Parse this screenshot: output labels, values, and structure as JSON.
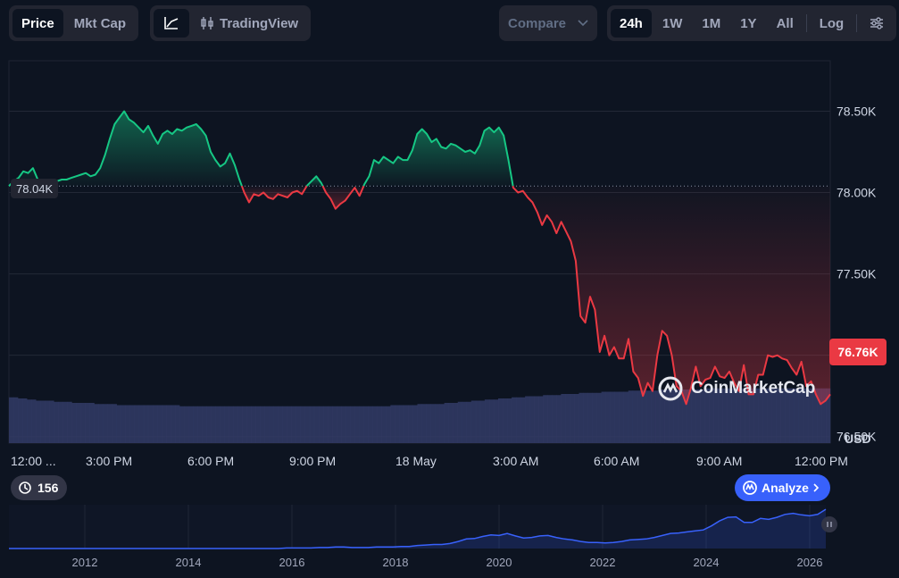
{
  "toolbar": {
    "price_tab": "Price",
    "mktcap_tab": "Mkt Cap",
    "tradingview": "TradingView",
    "compare": "Compare",
    "ranges": [
      "24h",
      "1W",
      "1M",
      "1Y",
      "All"
    ],
    "log": "Log",
    "icons": {
      "line_chart": "line-chart-icon",
      "candles": "candlestick-icon",
      "chevron": "chevron-down-icon",
      "settings": "sliders-icon"
    }
  },
  "colors": {
    "up": "#16c784",
    "down": "#ea3943",
    "accent": "#3861fb",
    "bg": "#0d1421",
    "volume": "#323b66",
    "overview": "#3861fb"
  },
  "watermark": "CoinMarketCap",
  "history_count": "156",
  "analyze_label": "Analyze",
  "currency": "USD",
  "chart_data": {
    "type": "line",
    "baseline_label": "78.04K",
    "current_label": "76.76K",
    "baseline": 78040,
    "y_axis": {
      "ticks": [
        "78.50K",
        "78.00K",
        "77.50K",
        "77.00K",
        "76.50K"
      ],
      "tick_values": [
        78500,
        78000,
        77500,
        77000,
        76500
      ]
    },
    "x_axis": {
      "ticks": [
        "12:00 ...",
        "3:00 PM",
        "6:00 PM",
        "9:00 PM",
        "18 May",
        "3:00 AM",
        "6:00 AM",
        "9:00 AM",
        "12:00 PM"
      ]
    },
    "series": [
      {
        "values": [
          78040,
          78070,
          78090,
          78130,
          78120,
          78150,
          78080,
          78060,
          78050,
          78060,
          78070,
          78080,
          78080,
          78090,
          78100,
          78110,
          78120,
          78100,
          78110,
          78150,
          78230,
          78330,
          78420,
          78460,
          78500,
          78450,
          78430,
          78400,
          78370,
          78410,
          78350,
          78300,
          78360,
          78380,
          78360,
          78390,
          78380,
          78400,
          78410,
          78420,
          78390,
          78350,
          78250,
          78200,
          78160,
          78180,
          78240,
          78170,
          78080,
          78000,
          77940,
          77990,
          77980,
          78000,
          77970,
          77960,
          77990,
          77980,
          77970,
          78000,
          78010,
          77990,
          78040,
          78070,
          78100,
          78060,
          78000,
          77960,
          77900,
          77930,
          77950,
          77990,
          78030,
          77980,
          78050,
          78100,
          78200,
          78180,
          78220,
          78200,
          78180,
          78220,
          78200,
          78200,
          78260,
          78360,
          78390,
          78360,
          78310,
          78330,
          78280,
          78270,
          78300,
          78290,
          78270,
          78250,
          78260,
          78240,
          78290,
          78380,
          78400,
          78370,
          78400,
          78350,
          78200,
          78030,
          78000,
          78010,
          77970,
          77940,
          77880,
          77800,
          77860,
          77820,
          77750,
          77820,
          77760,
          77700,
          77580,
          77240,
          77200,
          77360,
          77280,
          77020,
          77120,
          77000,
          77050,
          76980,
          76980,
          77100,
          76900,
          76860,
          76750,
          76830,
          76780,
          77000,
          77150,
          77120,
          77000,
          76810,
          76780,
          76700,
          76800,
          76930,
          76810,
          76850,
          76860,
          76930,
          76870,
          76860,
          76900,
          76830,
          76780,
          76940,
          76760,
          76760,
          76880,
          76880,
          77000,
          76990,
          77000,
          76980,
          76970,
          76920,
          76880,
          76960,
          76810,
          76840,
          76760,
          76700,
          76720,
          76760
        ]
      }
    ],
    "volume": {
      "values": [
        41,
        41,
        40,
        40,
        39,
        39,
        38,
        38,
        38,
        38,
        37,
        37,
        37,
        37,
        36,
        36,
        36,
        36,
        36,
        35,
        35,
        35,
        35,
        35,
        34,
        34,
        34,
        34,
        34,
        34,
        34,
        34,
        34,
        34,
        34,
        34,
        34,
        34,
        33,
        33,
        33,
        33,
        33,
        33,
        33,
        33,
        33,
        33,
        33,
        33,
        33,
        33,
        33,
        33,
        33,
        33,
        33,
        33,
        33,
        33,
        33,
        33,
        33,
        33,
        33,
        33,
        33,
        33,
        33,
        33,
        33,
        33,
        33,
        33,
        33,
        33,
        33,
        33,
        33,
        33,
        33,
        33,
        33,
        33,
        33,
        34,
        34,
        34,
        34,
        34,
        34,
        35,
        35,
        35,
        35,
        35,
        35,
        36,
        36,
        36,
        37,
        37,
        37,
        38,
        38,
        38,
        39,
        39,
        39,
        40,
        40,
        40,
        41,
        41,
        41,
        42,
        42,
        42,
        42,
        43,
        43,
        43,
        43,
        44,
        44,
        44,
        44,
        45,
        45,
        45,
        45,
        45,
        46,
        46,
        46,
        46,
        46,
        46,
        47,
        47,
        47,
        47,
        47,
        47,
        47,
        48,
        48,
        48,
        48,
        48,
        48,
        48,
        48,
        48,
        48,
        49,
        49,
        49,
        49,
        49,
        49,
        49,
        49,
        49,
        49,
        49,
        49,
        49,
        49,
        49,
        49,
        49,
        49,
        49,
        49,
        49,
        49,
        49,
        49,
        49,
        49,
        49,
        49
      ]
    },
    "overview": {
      "x_ticks": [
        "2012",
        "2014",
        "2016",
        "2018",
        "2020",
        "2022",
        "2024",
        "2026"
      ],
      "values": [
        0,
        0,
        0,
        0,
        0,
        0,
        0,
        0,
        0,
        0,
        0,
        0,
        0,
        0,
        0,
        0,
        0,
        0,
        0,
        0,
        0,
        0,
        0,
        0,
        0,
        0,
        0,
        0,
        0,
        0,
        0,
        0,
        0,
        0,
        1,
        1,
        1,
        1,
        2,
        2,
        3,
        3,
        2,
        2,
        2,
        3,
        3,
        3,
        4,
        4,
        6,
        7,
        8,
        8,
        10,
        14,
        19,
        20,
        24,
        27,
        26,
        30,
        25,
        21,
        22,
        25,
        26,
        22,
        19,
        17,
        14,
        12,
        12,
        11,
        12,
        14,
        17,
        18,
        19,
        22,
        26,
        30,
        31,
        33,
        35,
        37,
        45,
        55,
        62,
        63,
        52,
        52,
        60,
        58,
        62,
        68,
        70,
        67,
        65,
        68,
        78
      ]
    }
  }
}
